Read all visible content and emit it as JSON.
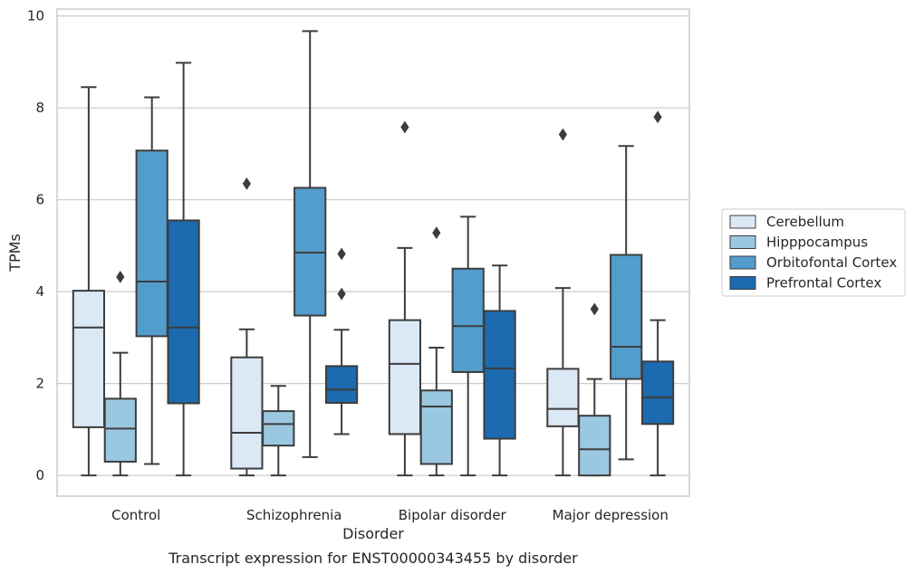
{
  "chart_data": {
    "type": "box",
    "title": "",
    "caption": "Transcript expression for ENST00000343455 by disorder",
    "xlabel": "Disorder",
    "ylabel": "TPMs",
    "ylim": [
      -0.45,
      10.15
    ],
    "yticks": [
      0,
      2,
      4,
      6,
      8,
      10
    ],
    "grid": "horizontal",
    "legend_position": "right",
    "categories": [
      "Control",
      "Schizophrenia",
      "Bipolar disorder",
      "Major depression"
    ],
    "series": [
      {
        "name": "Cerebellum",
        "color": "#dbe9f6",
        "boxes": [
          {
            "min": 0,
            "q1": 1.05,
            "median": 3.22,
            "q3": 4.02,
            "max": 8.45,
            "outliers": []
          },
          {
            "min": 0,
            "q1": 0.15,
            "median": 0.93,
            "q3": 2.57,
            "max": 3.18,
            "outliers": [
              6.35
            ]
          },
          {
            "min": 0,
            "q1": 0.9,
            "median": 2.43,
            "q3": 3.38,
            "max": 4.95,
            "outliers": [
              7.58
            ]
          },
          {
            "min": 0,
            "q1": 1.07,
            "median": 1.45,
            "q3": 2.32,
            "max": 4.08,
            "outliers": [
              7.42
            ]
          }
        ]
      },
      {
        "name": "Hipppocampus",
        "color": "#9ac8e0",
        "boxes": [
          {
            "min": 0,
            "q1": 0.3,
            "median": 1.02,
            "q3": 1.67,
            "max": 2.67,
            "outliers": [
              4.32
            ]
          },
          {
            "min": 0,
            "q1": 0.65,
            "median": 1.12,
            "q3": 1.4,
            "max": 1.95,
            "outliers": []
          },
          {
            "min": 0,
            "q1": 0.25,
            "median": 1.5,
            "q3": 1.85,
            "max": 2.78,
            "outliers": [
              5.28
            ]
          },
          {
            "min": 0,
            "q1": 0,
            "median": 0.57,
            "q3": 1.3,
            "max": 2.1,
            "outliers": [
              3.62
            ]
          }
        ]
      },
      {
        "name": "Orbitofontal Cortex",
        "color": "#529dcc",
        "boxes": [
          {
            "min": 0.25,
            "q1": 3.03,
            "median": 4.22,
            "q3": 7.07,
            "max": 8.23,
            "outliers": []
          },
          {
            "min": 0.4,
            "q1": 3.48,
            "median": 4.85,
            "q3": 6.26,
            "max": 9.67,
            "outliers": []
          },
          {
            "min": 0,
            "q1": 2.25,
            "median": 3.25,
            "q3": 4.5,
            "max": 5.63,
            "outliers": []
          },
          {
            "min": 0.35,
            "q1": 2.1,
            "median": 2.8,
            "q3": 4.8,
            "max": 7.17,
            "outliers": []
          }
        ]
      },
      {
        "name": "Prefrontal Cortex",
        "color": "#1c6aaf",
        "boxes": [
          {
            "min": 0,
            "q1": 1.57,
            "median": 3.22,
            "q3": 5.55,
            "max": 8.98,
            "outliers": []
          },
          {
            "min": 0.9,
            "q1": 1.58,
            "median": 1.87,
            "q3": 2.38,
            "max": 3.17,
            "outliers": [
              3.95,
              4.82
            ]
          },
          {
            "min": 0,
            "q1": 0.8,
            "median": 2.33,
            "q3": 3.58,
            "max": 4.57,
            "outliers": []
          },
          {
            "min": 0,
            "q1": 1.12,
            "median": 1.7,
            "q3": 2.48,
            "max": 3.38,
            "outliers": [
              7.8
            ]
          }
        ]
      }
    ]
  }
}
